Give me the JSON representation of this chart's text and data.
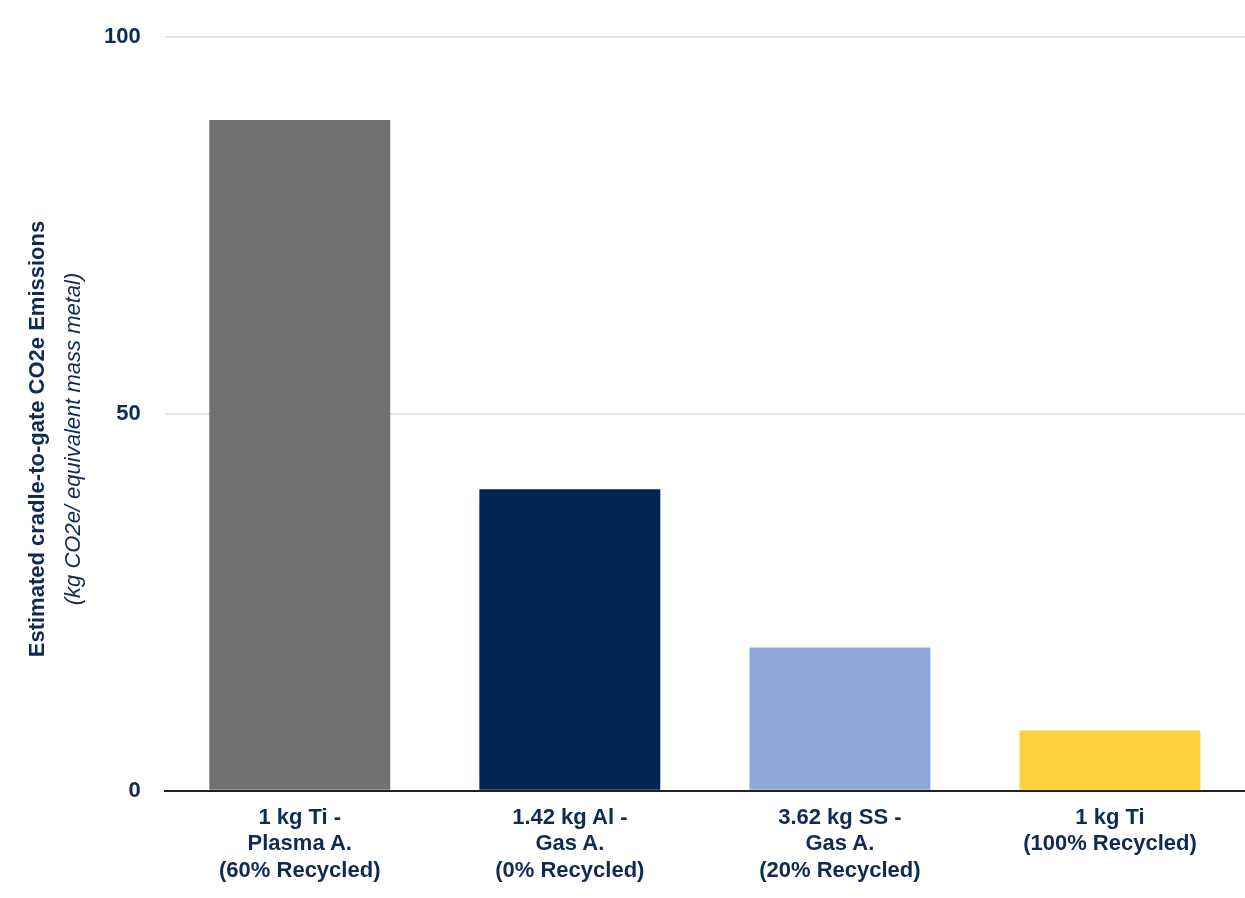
{
  "chart_data": {
    "type": "bar",
    "ylabel": "Estimated cradle-to-gate CO2e Emissions (kg CO2e/ equivalent mass metal)",
    "categories": [
      "1 kg Ti - Plasma A. (60% Recycled)",
      "1.42 kg Al - Gas A. (0% Recycled)",
      "3.62 kg SS - Gas A. (20% Recycled)",
      "1 kg Ti (100% Recycled)"
    ],
    "values": [
      89,
      40,
      19,
      8
    ],
    "colors": [
      "#717270",
      "#002554",
      "#8ea8d8",
      "#fdd23f"
    ],
    "ylim": [
      0,
      100
    ],
    "yticks": [
      0,
      50,
      100
    ],
    "grid": "y",
    "legend": false
  }
}
